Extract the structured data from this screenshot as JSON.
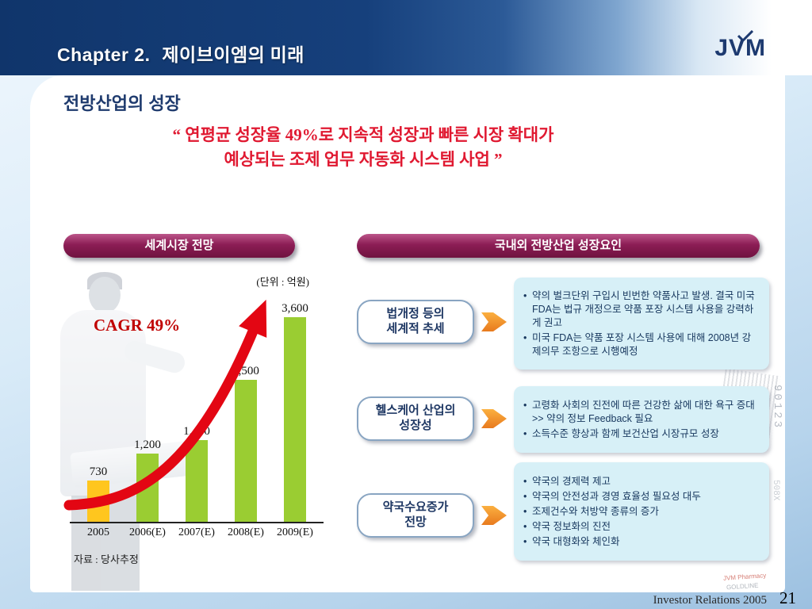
{
  "header": {
    "chapter_label": "Chapter 2.",
    "chapter_title": "제이브이엠의 미래",
    "logo_text": "JVM"
  },
  "slide": {
    "title": "전방산업의 성장",
    "quote_line1": "“ 연평균 성장율 49%로 지속적 성장과 빠른 시장 확대가",
    "quote_line2": "예상되는 조제 업무 자동화 시스템 사업 ”"
  },
  "left_section": {
    "header": "세계시장 전망",
    "unit_label": "(단위 : 억원)",
    "cagr_label": "CAGR 49%",
    "source": "자료 : 당사추정"
  },
  "chart_data": {
    "type": "bar",
    "title": "세계시장 전망",
    "unit": "(단위 : 억원)",
    "annotation": "CAGR 49%",
    "categories": [
      "2005",
      "2006(E)",
      "2007(E)",
      "2008(E)",
      "2009(E)"
    ],
    "values": [
      730,
      1200,
      1440,
      2500,
      3600
    ],
    "value_labels": [
      "730",
      "1,200",
      "1,440",
      "2,500",
      "3,600"
    ],
    "bar_colors": [
      "#FFC61E",
      "#9ACD32",
      "#9ACD32",
      "#9ACD32",
      "#9ACD32"
    ],
    "ylim": [
      0,
      3600
    ],
    "grid": false,
    "legend": false,
    "source": "자료 : 당사추정"
  },
  "right_section": {
    "header": "국내외 전방산업 성장요인",
    "rows": [
      {
        "label": "법개정 등의\n세계적 추세",
        "bullets": [
          "약의 벌크단위 구입시 빈번한 약품사고 발생. 결국 미국 FDA는 법규 개정으로 약품 포장 시스템 사용을 강력하게 권고",
          "미국 FDA는 약품 포장 시스템 사용에 대해 2008년 강제의무 조항으로 시행예정"
        ]
      },
      {
        "label": "헬스케어 산업의\n성장성",
        "bullets": [
          "고령화 사회의 진전에 따른 건강한 삶에 대한 욕구 증대 >> 약의 정보 Feedback 필요",
          "소득수준 향상과 함께 보건산업 시장규모 성장"
        ]
      },
      {
        "label": "약국수요증가\n전망",
        "bullets": [
          "약국의 경제력 제고",
          "약국의 안전성과 경영 효율성 필요성 대두",
          "조제건수와 처방약 종류의 증가",
          "약국 정보화의 진전",
          "약국 대형화와 체인화"
        ]
      }
    ]
  },
  "decor": {
    "barcode_number": "90123",
    "code_fragment": "508X",
    "brand_red": "JVM Pharmacy",
    "brand_gray": "GOLDLINE"
  },
  "footer": {
    "text": "Investor Relations 2005",
    "page": "21"
  },
  "colors": {
    "accent_red": "#E30613",
    "quote_red": "#E01931",
    "pill_magenta": "#8C1D55",
    "navy_text": "#17375E",
    "infobox_bg": "#D7F0F7",
    "bar_yellow": "#FFC61E",
    "bar_green": "#9ACD32",
    "orange_arrow": "#E87A1E",
    "topbar_navy": "#10356B"
  }
}
